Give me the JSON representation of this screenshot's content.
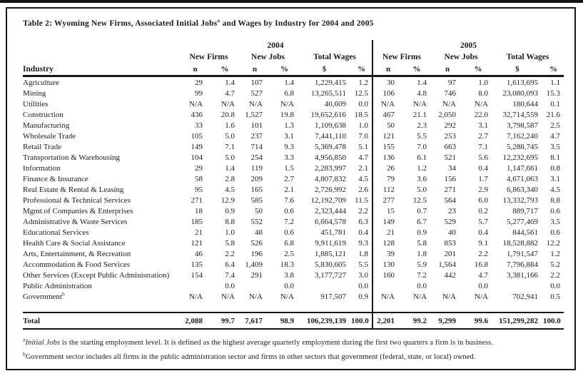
{
  "table": {
    "title_prefix": "Table 2: Wyoming New Firms, Associated Initial Jobs",
    "title_sup": "a",
    "title_suffix": " and Wages by Industry for 2004 and 2005",
    "years": [
      "2004",
      "2005"
    ],
    "group_headers": [
      "New Firms",
      "New Jobs",
      "Total Wages"
    ],
    "industry_header": "Industry",
    "unit_headers": [
      "n",
      "%",
      "n",
      "%",
      "$",
      "%"
    ],
    "rows": [
      {
        "industry": "Agriculture",
        "values": [
          "29",
          "1.4",
          "107",
          "1.4",
          "1,229,415",
          "1.2",
          "30",
          "1.4",
          "97",
          "1.0",
          "1,613,695",
          "1.1"
        ]
      },
      {
        "industry": "Mining",
        "values": [
          "99",
          "4.7",
          "527",
          "6.8",
          "13,265,511",
          "12.5",
          "106",
          "4.8",
          "746",
          "8.0",
          "23,080,093",
          "15.3"
        ]
      },
      {
        "industry": "Utilities",
        "values": [
          "N/A",
          "N/A",
          "N/A",
          "N/A",
          "40,609",
          "0.0",
          "N/A",
          "N/A",
          "N/A",
          "N/A",
          "180,644",
          "0.1"
        ]
      },
      {
        "industry": "Construction",
        "values": [
          "436",
          "20.8",
          "1,527",
          "19.8",
          "19,652,616",
          "18.5",
          "467",
          "21.1",
          "2,050",
          "22.0",
          "32,714,559",
          "21.6"
        ]
      },
      {
        "industry": "Manufacturing",
        "values": [
          "33",
          "1.6",
          "101",
          "1.3",
          "1,109,638",
          "1.0",
          "50",
          "2.3",
          "292",
          "3.1",
          "3,798,587",
          "2.5"
        ]
      },
      {
        "industry": "Wholesale Trade",
        "values": [
          "105",
          "5.0",
          "237",
          "3.1",
          "7,441,110",
          "7.0",
          "121",
          "5.5",
          "253",
          "2.7",
          "7,162,240",
          "4.7"
        ]
      },
      {
        "industry": "Retail Trade",
        "values": [
          "149",
          "7.1",
          "714",
          "9.3",
          "5,369,478",
          "5.1",
          "155",
          "7.0",
          "663",
          "7.1",
          "5,288,745",
          "3.5"
        ]
      },
      {
        "industry": "Transportation & Warehousing",
        "values": [
          "104",
          "5.0",
          "254",
          "3.3",
          "4,956,850",
          "4.7",
          "136",
          "6.1",
          "521",
          "5.6",
          "12,232,695",
          "8.1"
        ]
      },
      {
        "industry": "Information",
        "values": [
          "29",
          "1.4",
          "119",
          "1.5",
          "2,283,997",
          "2.1",
          "26",
          "1.2",
          "34",
          "0.4",
          "1,147,661",
          "0.8"
        ]
      },
      {
        "industry": "Finance & Insurance",
        "values": [
          "58",
          "2.8",
          "209",
          "2.7",
          "4,807,832",
          "4.5",
          "79",
          "3.6",
          "156",
          "1.7",
          "4,671,063",
          "3.1"
        ]
      },
      {
        "industry": "Real Estate & Rental & Leasing",
        "values": [
          "95",
          "4.5",
          "165",
          "2.1",
          "2,726,992",
          "2.6",
          "112",
          "5.0",
          "271",
          "2.9",
          "6,863,340",
          "4.5"
        ]
      },
      {
        "industry": "Professional & Technical Services",
        "values": [
          "271",
          "12.9",
          "585",
          "7.6",
          "12,192,709",
          "11.5",
          "277",
          "12.5",
          "564",
          "6.0",
          "13,332,793",
          "8.8"
        ]
      },
      {
        "industry": "Mgmt.of Companies & Enterprises",
        "values": [
          "18",
          "0.9",
          "50",
          "0.6",
          "2,323,444",
          "2.2",
          "15",
          "0.7",
          "23",
          "0.2",
          "889,717",
          "0.6"
        ]
      },
      {
        "industry": "Administrative & Waste Services",
        "values": [
          "185",
          "8.8",
          "552",
          "7.2",
          "6,664,578",
          "6.3",
          "149",
          "6.7",
          "529",
          "5.7",
          "5,277,469",
          "3.5"
        ]
      },
      {
        "industry": "Educational Services",
        "values": [
          "21",
          "1.0",
          "48",
          "0.6",
          "451,781",
          "0.4",
          "21",
          "0.9",
          "40",
          "0.4",
          "844,561",
          "0.6"
        ]
      },
      {
        "industry": "Health Care & Social Assistance",
        "values": [
          "121",
          "5.8",
          "526",
          "6.8",
          "9,911,619",
          "9.3",
          "128",
          "5.8",
          "853",
          "9.1",
          "18,528,882",
          "12.2"
        ]
      },
      {
        "industry": "Arts, Entertainment, & Recreation",
        "values": [
          "46",
          "2.2",
          "196",
          "2.5",
          "1,885,121",
          "1.8",
          "39",
          "1.8",
          "201",
          "2.2",
          "1,791,547",
          "1.2"
        ]
      },
      {
        "industry": "Accommodation & Food Services",
        "values": [
          "135",
          "6.4",
          "1,409",
          "18.3",
          "5,830,605",
          "5.5",
          "130",
          "5.9",
          "1,564",
          "16.8",
          "7,796,884",
          "5.2"
        ]
      },
      {
        "industry": "Other Services (Except Public Administration)",
        "values": [
          "154",
          "7.4",
          "291",
          "3.8",
          "3,177,727",
          "3.0",
          "160",
          "7.2",
          "442",
          "4.7",
          "3,381,166",
          "2.2"
        ]
      },
      {
        "industry": "Public Administration",
        "values": [
          "",
          "0.0",
          "",
          "0.0",
          "",
          "0.0",
          "",
          "0.0",
          "",
          "0.0",
          "",
          "0.0"
        ]
      },
      {
        "industry": "Government",
        "sup": "b",
        "values": [
          "N/A",
          "N/A",
          "N/A",
          "N/A",
          "917,507",
          "0.9",
          "N/A",
          "N/A",
          "N/A",
          "N/A",
          "702,941",
          "0.5"
        ]
      }
    ],
    "total": {
      "label": "Total",
      "values": [
        "2,088",
        "99.7",
        "7,617",
        "98.9",
        "106,239,139",
        "100.0",
        "2,201",
        "99.2",
        "9,299",
        "99.6",
        "151,299,282",
        "100.0"
      ]
    }
  },
  "footnotes": [
    {
      "sup": "a",
      "italic": "Initial Jobs",
      "text": " is the starting employment level. It is defined as the highest average quarterly employment during the first two quarters a firm is in business."
    },
    {
      "sup": "b",
      "italic": "",
      "text": "Government sector includes all firms in the public administration sector and firms in other sectors that government (federal, state, or local) owned."
    }
  ]
}
